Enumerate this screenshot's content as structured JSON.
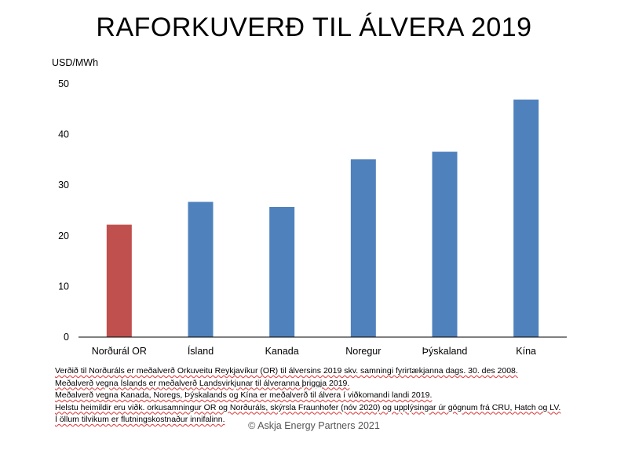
{
  "chart_data": {
    "type": "bar",
    "title": "RAFORKUVERÐ TIL ÁLVERA 2019",
    "ylabel": "USD/MWh",
    "xlabel": "",
    "ylim": [
      0,
      50
    ],
    "yticks": [
      0,
      10,
      20,
      30,
      40,
      50
    ],
    "grid": false,
    "categories": [
      "Norðurál OR",
      "Ísland",
      "Kanada",
      "Noregur",
      "Þýskaland",
      "Kína"
    ],
    "values": [
      22.2,
      26.7,
      25.7,
      35.1,
      36.6,
      46.9
    ],
    "colors": [
      "#c0504d",
      "#4f81bd",
      "#4f81bd",
      "#4f81bd",
      "#4f81bd",
      "#4f81bd"
    ]
  },
  "notes": [
    "Verðið til Norðuráls er meðalverð Orkuveitu Reykjavíkur (OR) til álversins 2019 skv. samningi fyrirtækjanna dags. 30. des 2008.",
    "Meðalverð vegna Íslands er meðalverð Landsvirkjunar til álveranna þriggja 2019.",
    "Meðalverð vegna Kanada, Noregs, Þýskalands og Kína er meðalverð til álvera í viðkomandi landi 2019.",
    "Helstu heimildir eru viðk. orkusamningur OR og Norðuráls, skýrsla Fraunhofer (nóv 2020) og upplýsingar úr gögnum frá CRU, Hatch og LV.",
    "Í öllum tilvikum er flutningskostnaður innifalinn."
  ],
  "copyright": "© Askja Energy Partners 2021"
}
